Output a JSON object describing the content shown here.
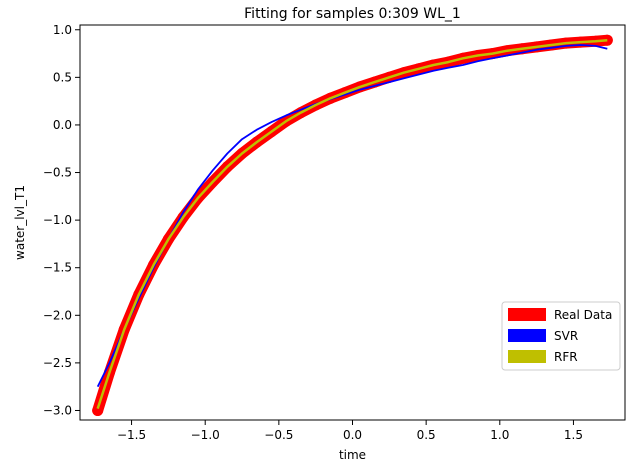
{
  "chart_data": {
    "type": "line",
    "title": "Fitting for samples 0:309 WL_1",
    "xlabel": "time",
    "ylabel": "water_lvl_T1",
    "xlim": [
      -1.85,
      1.85
    ],
    "ylim": [
      -3.1,
      1.05
    ],
    "xticks": [
      -1.5,
      -1.0,
      -0.5,
      0.0,
      0.5,
      1.0,
      1.5
    ],
    "xtick_labels": [
      "−1.5",
      "−1.0",
      "−0.5",
      "0.0",
      "0.5",
      "1.0",
      "1.5"
    ],
    "yticks": [
      1.0,
      0.5,
      0.0,
      -0.5,
      -1.0,
      -1.5,
      -2.0,
      -2.5,
      -3.0
    ],
    "ytick_labels": [
      "1.0",
      "0.5",
      "0.0",
      "−0.5",
      "−1.0",
      "−1.5",
      "−2.0",
      "−2.5",
      "−3.0"
    ],
    "grid": false,
    "legend_position": "lower-right",
    "series": [
      {
        "name": "Real Data",
        "color": "#ff0000",
        "style": "thick-markers",
        "x": [
          -1.73,
          -1.65,
          -1.55,
          -1.45,
          -1.35,
          -1.25,
          -1.15,
          -1.05,
          -0.95,
          -0.85,
          -0.75,
          -0.65,
          -0.55,
          -0.45,
          -0.35,
          -0.25,
          -0.15,
          -0.05,
          0.05,
          0.15,
          0.25,
          0.35,
          0.45,
          0.55,
          0.65,
          0.75,
          0.85,
          0.95,
          1.05,
          1.15,
          1.25,
          1.35,
          1.45,
          1.55,
          1.65,
          1.73
        ],
        "y": [
          -3.0,
          -2.6,
          -2.15,
          -1.78,
          -1.47,
          -1.2,
          -0.97,
          -0.77,
          -0.6,
          -0.44,
          -0.3,
          -0.18,
          -0.07,
          0.04,
          0.13,
          0.21,
          0.28,
          0.34,
          0.4,
          0.45,
          0.5,
          0.55,
          0.59,
          0.63,
          0.66,
          0.7,
          0.73,
          0.75,
          0.78,
          0.8,
          0.82,
          0.84,
          0.86,
          0.87,
          0.88,
          0.89
        ]
      },
      {
        "name": "SVR",
        "color": "#0000ff",
        "style": "line",
        "x": [
          -1.73,
          -1.65,
          -1.55,
          -1.45,
          -1.35,
          -1.25,
          -1.15,
          -1.05,
          -0.95,
          -0.85,
          -0.75,
          -0.65,
          -0.55,
          -0.45,
          -0.35,
          -0.25,
          -0.15,
          -0.05,
          0.05,
          0.15,
          0.25,
          0.35,
          0.45,
          0.55,
          0.65,
          0.75,
          0.85,
          0.95,
          1.05,
          1.15,
          1.25,
          1.35,
          1.45,
          1.55,
          1.65,
          1.73
        ],
        "y": [
          -2.75,
          -2.5,
          -2.15,
          -1.82,
          -1.5,
          -1.2,
          -0.92,
          -0.68,
          -0.48,
          -0.3,
          -0.15,
          -0.05,
          0.03,
          0.1,
          0.16,
          0.22,
          0.27,
          0.32,
          0.37,
          0.41,
          0.45,
          0.49,
          0.53,
          0.57,
          0.6,
          0.63,
          0.67,
          0.7,
          0.73,
          0.76,
          0.79,
          0.81,
          0.83,
          0.84,
          0.83,
          0.8
        ]
      },
      {
        "name": "RFR",
        "color": "#bfbf00",
        "style": "line",
        "x": [
          -1.73,
          -1.65,
          -1.55,
          -1.45,
          -1.35,
          -1.25,
          -1.15,
          -1.05,
          -0.95,
          -0.85,
          -0.75,
          -0.65,
          -0.55,
          -0.45,
          -0.35,
          -0.25,
          -0.15,
          -0.05,
          0.05,
          0.15,
          0.25,
          0.35,
          0.45,
          0.55,
          0.65,
          0.75,
          0.85,
          0.95,
          1.05,
          1.15,
          1.25,
          1.35,
          1.45,
          1.55,
          1.65,
          1.73
        ],
        "y": [
          -2.98,
          -2.6,
          -2.15,
          -1.78,
          -1.47,
          -1.2,
          -0.97,
          -0.77,
          -0.6,
          -0.44,
          -0.3,
          -0.18,
          -0.07,
          0.04,
          0.13,
          0.21,
          0.28,
          0.34,
          0.4,
          0.45,
          0.5,
          0.55,
          0.59,
          0.63,
          0.66,
          0.7,
          0.73,
          0.75,
          0.78,
          0.8,
          0.82,
          0.84,
          0.86,
          0.87,
          0.88,
          0.89
        ]
      }
    ]
  }
}
